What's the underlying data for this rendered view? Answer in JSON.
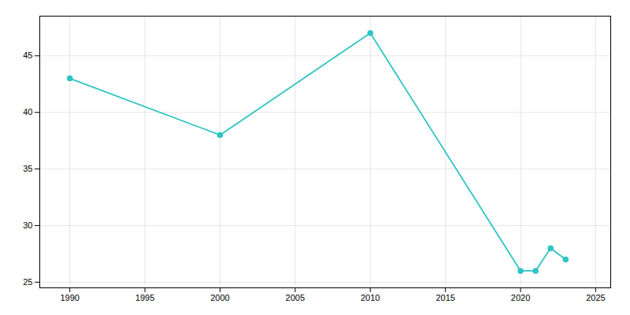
{
  "chart_data": {
    "type": "line",
    "x": [
      1990,
      2000,
      2010,
      2020,
      2021,
      2022,
      2023
    ],
    "values": [
      43,
      38,
      47,
      26,
      26,
      28,
      27
    ],
    "color": "#2ec4c4",
    "marker": "circle",
    "xlim": [
      1988,
      2026
    ],
    "ylim": [
      24.5,
      48.5
    ],
    "xticks": [
      1990,
      1995,
      2000,
      2005,
      2010,
      2015,
      2020,
      2025
    ],
    "yticks": [
      25,
      30,
      35,
      40,
      45
    ],
    "grid": true
  }
}
